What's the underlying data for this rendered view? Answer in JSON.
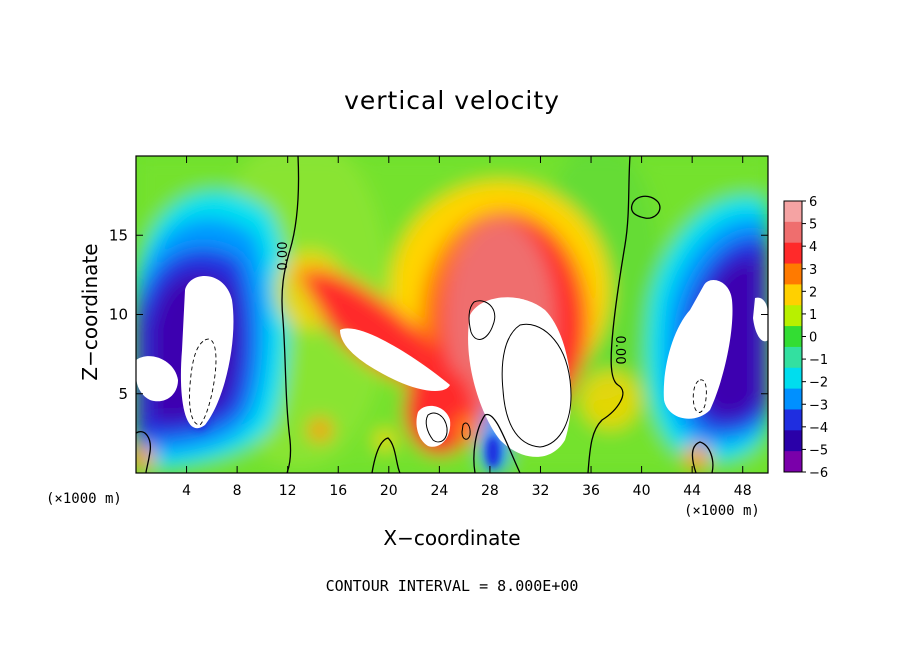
{
  "chart_data": {
    "type": "heatmap",
    "title": "vertical velocity",
    "xlabel": "X−coordinate",
    "ylabel": "Z−coordinate",
    "x_unit_left": "(×1000 m)",
    "x_unit_right": "(×1000 m)",
    "xlim": [
      0,
      50
    ],
    "ylim": [
      0,
      20
    ],
    "x_ticks": [
      4,
      8,
      12,
      16,
      20,
      24,
      28,
      32,
      36,
      40,
      44,
      48
    ],
    "y_ticks": [
      5,
      10,
      15
    ],
    "colorbar": {
      "ticks": [
        "6",
        "5",
        "4",
        "3",
        "2",
        "1",
        "0",
        "−1",
        "−2",
        "−3",
        "−4",
        "−5",
        "−6"
      ],
      "range": [
        -6,
        6
      ],
      "colors": [
        "#f5a3a3",
        "#ef6e6e",
        "#ff2a2a",
        "#ff7a00",
        "#ffd000",
        "#b8f000",
        "#33dd33",
        "#33e0a0",
        "#00ddee",
        "#0090ff",
        "#1f2ee0",
        "#2a00a8",
        "#7a00aa"
      ]
    },
    "contour_label": "0.00",
    "grid": false,
    "legend": "colorbar-right"
  },
  "footer": "CONTOUR INTERVAL = 8.000E+00"
}
